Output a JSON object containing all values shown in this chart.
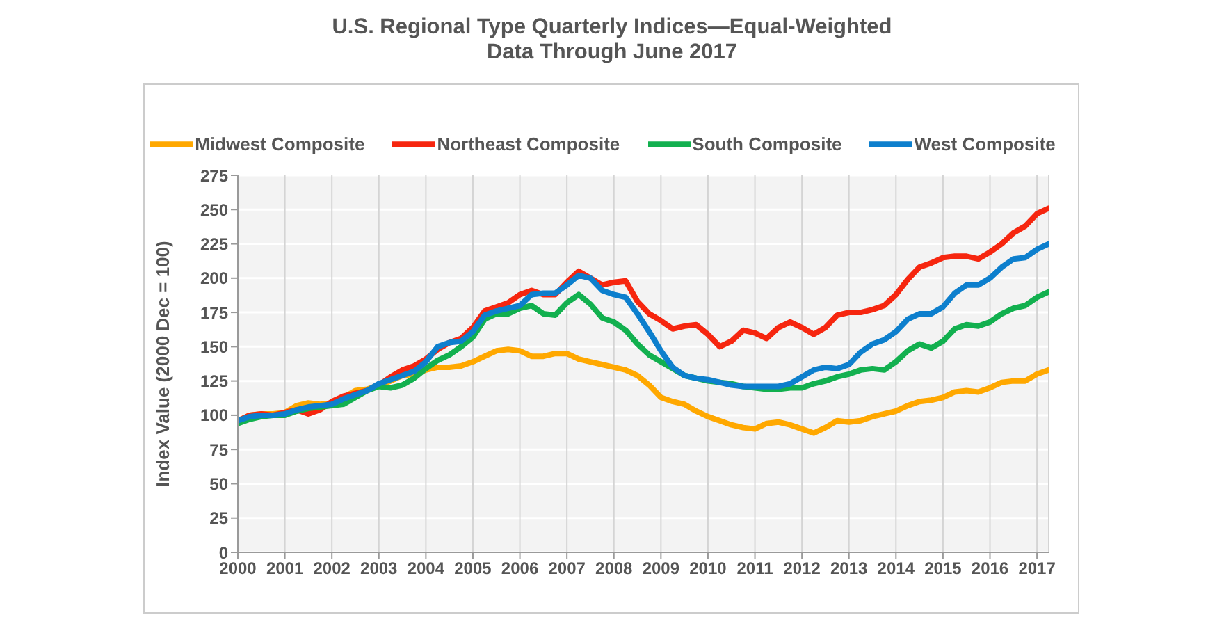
{
  "chart_data": {
    "type": "line",
    "title": "U.S. Regional Type Quarterly Indices—Equal-Weighted",
    "subtitle": "Data Through June 2017",
    "ylabel": "Index Value (2000 Dec = 100)",
    "x": [
      2000,
      2000.25,
      2000.5,
      2000.75,
      2001,
      2001.25,
      2001.5,
      2001.75,
      2002,
      2002.25,
      2002.5,
      2002.75,
      2003,
      2003.25,
      2003.5,
      2003.75,
      2004,
      2004.25,
      2004.5,
      2004.75,
      2005,
      2005.25,
      2005.5,
      2005.75,
      2006,
      2006.25,
      2006.5,
      2006.75,
      2007,
      2007.25,
      2007.5,
      2007.75,
      2008,
      2008.25,
      2008.5,
      2008.75,
      2009,
      2009.25,
      2009.5,
      2009.75,
      2010,
      2010.25,
      2010.5,
      2010.75,
      2011,
      2011.25,
      2011.5,
      2011.75,
      2012,
      2012.25,
      2012.5,
      2012.75,
      2013,
      2013.25,
      2013.5,
      2013.75,
      2014,
      2014.25,
      2014.5,
      2014.75,
      2015,
      2015.25,
      2015.5,
      2015.75,
      2016,
      2016.25,
      2016.5,
      2016.75,
      2017,
      2017.25
    ],
    "series": [
      {
        "name": "Midwest Composite",
        "color": "#ffa800",
        "values": [
          96,
          100,
          101,
          101,
          102,
          107,
          109,
          108,
          109,
          113,
          118,
          119,
          122,
          125,
          129,
          130,
          133,
          135,
          135,
          136,
          139,
          143,
          147,
          148,
          147,
          143,
          143,
          145,
          145,
          141,
          139,
          137,
          135,
          133,
          129,
          122,
          113,
          110,
          108,
          103,
          99,
          96,
          93,
          91,
          90,
          94,
          95,
          93,
          90,
          87,
          91,
          96,
          95,
          96,
          99,
          101,
          103,
          107,
          110,
          111,
          113,
          117,
          118,
          117,
          120,
          124,
          125,
          125,
          130,
          133
        ]
      },
      {
        "name": "Northeast Composite",
        "color": "#f6260f",
        "values": [
          96,
          100,
          101,
          100,
          102,
          104,
          101,
          104,
          110,
          114,
          116,
          118,
          122,
          128,
          133,
          136,
          141,
          148,
          153,
          156,
          164,
          176,
          179,
          182,
          188,
          191,
          188,
          188,
          197,
          205,
          200,
          195,
          197,
          198,
          183,
          174,
          169,
          163,
          165,
          166,
          159,
          150,
          154,
          162,
          160,
          156,
          164,
          168,
          164,
          159,
          164,
          173,
          175,
          175,
          177,
          180,
          188,
          199,
          208,
          211,
          215,
          216,
          216,
          214,
          219,
          225,
          233,
          238,
          247,
          251
        ]
      },
      {
        "name": "South Composite",
        "color": "#12b04f",
        "values": [
          94,
          97,
          99,
          100,
          100,
          103,
          105,
          106,
          107,
          108,
          113,
          118,
          121,
          120,
          122,
          127,
          134,
          140,
          144,
          150,
          157,
          170,
          174,
          174,
          178,
          180,
          174,
          173,
          182,
          188,
          181,
          171,
          168,
          162,
          152,
          144,
          139,
          134,
          129,
          127,
          125,
          124,
          123,
          121,
          120,
          119,
          119,
          120,
          120,
          123,
          125,
          128,
          130,
          133,
          134,
          133,
          139,
          147,
          152,
          149,
          154,
          163,
          166,
          165,
          168,
          174,
          178,
          180,
          186,
          190
        ]
      },
      {
        "name": "West Composite",
        "color": "#0d7fcd",
        "values": [
          96,
          99,
          100,
          100,
          101,
          104,
          106,
          107,
          108,
          112,
          115,
          118,
          123,
          126,
          129,
          132,
          139,
          150,
          153,
          154,
          161,
          173,
          176,
          178,
          180,
          188,
          189,
          189,
          195,
          202,
          200,
          191,
          188,
          186,
          174,
          161,
          147,
          135,
          129,
          127,
          126,
          124,
          122,
          121,
          121,
          121,
          121,
          123,
          128,
          133,
          135,
          134,
          137,
          146,
          152,
          155,
          161,
          170,
          174,
          174,
          179,
          189,
          195,
          195,
          200,
          208,
          214,
          215,
          221,
          225
        ]
      }
    ],
    "xlim": [
      2000,
      2017.25
    ],
    "xticks": [
      2000,
      2001,
      2002,
      2003,
      2004,
      2005,
      2006,
      2007,
      2008,
      2009,
      2010,
      2011,
      2012,
      2013,
      2014,
      2015,
      2016,
      2017
    ],
    "ylim": [
      0,
      275
    ],
    "yticks": [
      0,
      25,
      50,
      75,
      100,
      125,
      150,
      175,
      200,
      225,
      250,
      275
    ],
    "grid": true,
    "legend": "top"
  }
}
